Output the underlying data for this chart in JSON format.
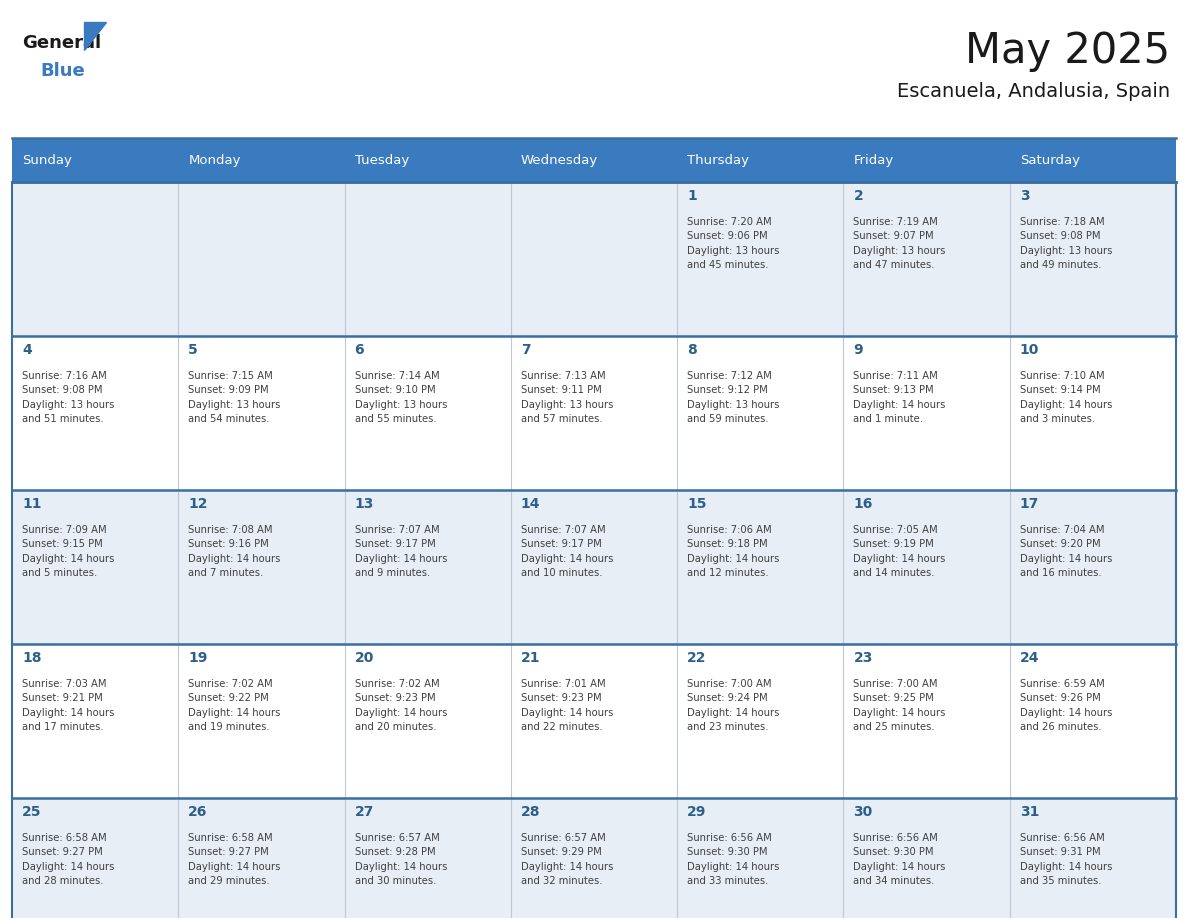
{
  "title": "May 2025",
  "subtitle": "Escanuela, Andalusia, Spain",
  "header_color": "#3a7abf",
  "header_text_color": "#ffffff",
  "row_colors": [
    "#e8eef5",
    "#ffffff",
    "#e8eef5",
    "#ffffff",
    "#e8eef5"
  ],
  "day_number_color": "#2c5f8a",
  "text_color": "#404040",
  "border_color": "#3a6fa0",
  "grid_color": "#c0c8d8",
  "days_of_week": [
    "Sunday",
    "Monday",
    "Tuesday",
    "Wednesday",
    "Thursday",
    "Friday",
    "Saturday"
  ],
  "weeks": [
    [
      {
        "day": "",
        "info": ""
      },
      {
        "day": "",
        "info": ""
      },
      {
        "day": "",
        "info": ""
      },
      {
        "day": "",
        "info": ""
      },
      {
        "day": "1",
        "info": "Sunrise: 7:20 AM\nSunset: 9:06 PM\nDaylight: 13 hours\nand 45 minutes."
      },
      {
        "day": "2",
        "info": "Sunrise: 7:19 AM\nSunset: 9:07 PM\nDaylight: 13 hours\nand 47 minutes."
      },
      {
        "day": "3",
        "info": "Sunrise: 7:18 AM\nSunset: 9:08 PM\nDaylight: 13 hours\nand 49 minutes."
      }
    ],
    [
      {
        "day": "4",
        "info": "Sunrise: 7:16 AM\nSunset: 9:08 PM\nDaylight: 13 hours\nand 51 minutes."
      },
      {
        "day": "5",
        "info": "Sunrise: 7:15 AM\nSunset: 9:09 PM\nDaylight: 13 hours\nand 54 minutes."
      },
      {
        "day": "6",
        "info": "Sunrise: 7:14 AM\nSunset: 9:10 PM\nDaylight: 13 hours\nand 55 minutes."
      },
      {
        "day": "7",
        "info": "Sunrise: 7:13 AM\nSunset: 9:11 PM\nDaylight: 13 hours\nand 57 minutes."
      },
      {
        "day": "8",
        "info": "Sunrise: 7:12 AM\nSunset: 9:12 PM\nDaylight: 13 hours\nand 59 minutes."
      },
      {
        "day": "9",
        "info": "Sunrise: 7:11 AM\nSunset: 9:13 PM\nDaylight: 14 hours\nand 1 minute."
      },
      {
        "day": "10",
        "info": "Sunrise: 7:10 AM\nSunset: 9:14 PM\nDaylight: 14 hours\nand 3 minutes."
      }
    ],
    [
      {
        "day": "11",
        "info": "Sunrise: 7:09 AM\nSunset: 9:15 PM\nDaylight: 14 hours\nand 5 minutes."
      },
      {
        "day": "12",
        "info": "Sunrise: 7:08 AM\nSunset: 9:16 PM\nDaylight: 14 hours\nand 7 minutes."
      },
      {
        "day": "13",
        "info": "Sunrise: 7:07 AM\nSunset: 9:17 PM\nDaylight: 14 hours\nand 9 minutes."
      },
      {
        "day": "14",
        "info": "Sunrise: 7:07 AM\nSunset: 9:17 PM\nDaylight: 14 hours\nand 10 minutes."
      },
      {
        "day": "15",
        "info": "Sunrise: 7:06 AM\nSunset: 9:18 PM\nDaylight: 14 hours\nand 12 minutes."
      },
      {
        "day": "16",
        "info": "Sunrise: 7:05 AM\nSunset: 9:19 PM\nDaylight: 14 hours\nand 14 minutes."
      },
      {
        "day": "17",
        "info": "Sunrise: 7:04 AM\nSunset: 9:20 PM\nDaylight: 14 hours\nand 16 minutes."
      }
    ],
    [
      {
        "day": "18",
        "info": "Sunrise: 7:03 AM\nSunset: 9:21 PM\nDaylight: 14 hours\nand 17 minutes."
      },
      {
        "day": "19",
        "info": "Sunrise: 7:02 AM\nSunset: 9:22 PM\nDaylight: 14 hours\nand 19 minutes."
      },
      {
        "day": "20",
        "info": "Sunrise: 7:02 AM\nSunset: 9:23 PM\nDaylight: 14 hours\nand 20 minutes."
      },
      {
        "day": "21",
        "info": "Sunrise: 7:01 AM\nSunset: 9:23 PM\nDaylight: 14 hours\nand 22 minutes."
      },
      {
        "day": "22",
        "info": "Sunrise: 7:00 AM\nSunset: 9:24 PM\nDaylight: 14 hours\nand 23 minutes."
      },
      {
        "day": "23",
        "info": "Sunrise: 7:00 AM\nSunset: 9:25 PM\nDaylight: 14 hours\nand 25 minutes."
      },
      {
        "day": "24",
        "info": "Sunrise: 6:59 AM\nSunset: 9:26 PM\nDaylight: 14 hours\nand 26 minutes."
      }
    ],
    [
      {
        "day": "25",
        "info": "Sunrise: 6:58 AM\nSunset: 9:27 PM\nDaylight: 14 hours\nand 28 minutes."
      },
      {
        "day": "26",
        "info": "Sunrise: 6:58 AM\nSunset: 9:27 PM\nDaylight: 14 hours\nand 29 minutes."
      },
      {
        "day": "27",
        "info": "Sunrise: 6:57 AM\nSunset: 9:28 PM\nDaylight: 14 hours\nand 30 minutes."
      },
      {
        "day": "28",
        "info": "Sunrise: 6:57 AM\nSunset: 9:29 PM\nDaylight: 14 hours\nand 32 minutes."
      },
      {
        "day": "29",
        "info": "Sunrise: 6:56 AM\nSunset: 9:30 PM\nDaylight: 14 hours\nand 33 minutes."
      },
      {
        "day": "30",
        "info": "Sunrise: 6:56 AM\nSunset: 9:30 PM\nDaylight: 14 hours\nand 34 minutes."
      },
      {
        "day": "31",
        "info": "Sunrise: 6:56 AM\nSunset: 9:31 PM\nDaylight: 14 hours\nand 35 minutes."
      }
    ]
  ]
}
